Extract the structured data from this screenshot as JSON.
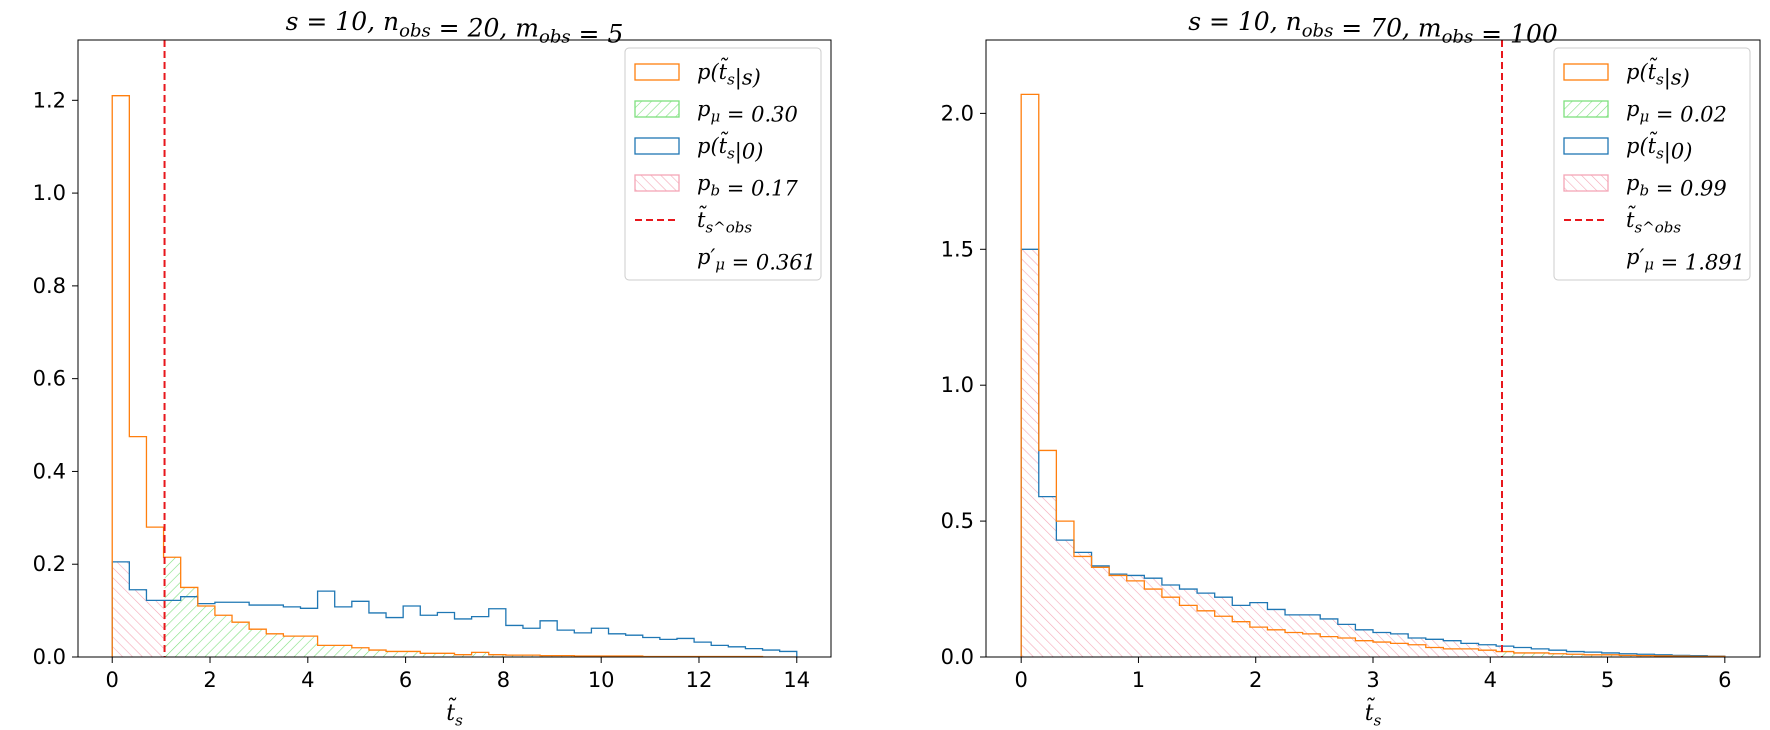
{
  "chart_data": [
    {
      "type": "histogram",
      "title": "s = 10, n_obs = 20, m_obs = 5",
      "xlabel": "t̃_s",
      "ylabel": "",
      "xlim": [
        -0.7,
        14.7
      ],
      "ylim": [
        0,
        1.33
      ],
      "xticks": [
        0,
        2,
        4,
        6,
        8,
        10,
        12,
        14
      ],
      "yticks": [
        0.0,
        0.2,
        0.4,
        0.6,
        0.8,
        1.0,
        1.2
      ],
      "xtick_labels": [
        "0",
        "2",
        "4",
        "6",
        "8",
        "10",
        "12",
        "14"
      ],
      "ytick_labels": [
        "0.0",
        "0.2",
        "0.4",
        "0.6",
        "0.8",
        "1.0",
        "1.2"
      ],
      "bins": {
        "start": 0,
        "width": 0.35
      },
      "series": [
        {
          "name": "p(t̃_s|s)",
          "color": "#ff7f0e",
          "values": [
            1.21,
            0.475,
            0.28,
            0.215,
            0.15,
            0.11,
            0.09,
            0.075,
            0.06,
            0.05,
            0.045,
            0.045,
            0.025,
            0.025,
            0.02,
            0.015,
            0.012,
            0.012,
            0.008,
            0.008,
            0.005,
            0.01,
            0.005,
            0.004,
            0.004,
            0.003,
            0.003,
            0.002,
            0.002,
            0.002,
            0.002,
            0.001,
            0.001,
            0.001,
            0.001,
            0.001,
            0.001,
            0.001,
            0.0,
            0.0
          ]
        },
        {
          "name": "p(t̃_s|0)",
          "color": "#1f77b4",
          "values": [
            0.205,
            0.145,
            0.122,
            0.122,
            0.13,
            0.115,
            0.118,
            0.118,
            0.112,
            0.112,
            0.108,
            0.105,
            0.142,
            0.108,
            0.12,
            0.095,
            0.085,
            0.11,
            0.09,
            0.096,
            0.082,
            0.087,
            0.104,
            0.068,
            0.062,
            0.078,
            0.058,
            0.052,
            0.062,
            0.05,
            0.047,
            0.042,
            0.038,
            0.04,
            0.032,
            0.025,
            0.022,
            0.018,
            0.015,
            0.012
          ]
        }
      ],
      "observed_t": 1.07,
      "legend": {
        "position": "top-right",
        "entries": [
          "p(t̃_s|s)",
          "p_μ = 0.30",
          "p(t̃_s|0)",
          "p_b = 0.17",
          "t̃_s^obs",
          "p′_μ = 0.361"
        ]
      }
    },
    {
      "type": "histogram",
      "title": "s = 10, n_obs = 70, m_obs = 100",
      "xlabel": "t̃_s",
      "ylabel": "",
      "xlim": [
        -0.3,
        6.3
      ],
      "ylim": [
        0,
        2.27
      ],
      "xticks": [
        0,
        1,
        2,
        3,
        4,
        5,
        6
      ],
      "yticks": [
        0.0,
        0.5,
        1.0,
        1.5,
        2.0
      ],
      "xtick_labels": [
        "0",
        "1",
        "2",
        "3",
        "4",
        "5",
        "6"
      ],
      "ytick_labels": [
        "0.0",
        "0.5",
        "1.0",
        "1.5",
        "2.0"
      ],
      "bins": {
        "start": 0,
        "width": 0.15
      },
      "series": [
        {
          "name": "p(t̃_s|s)",
          "color": "#ff7f0e",
          "values": [
            2.07,
            0.76,
            0.5,
            0.37,
            0.33,
            0.3,
            0.28,
            0.25,
            0.22,
            0.19,
            0.17,
            0.15,
            0.13,
            0.11,
            0.1,
            0.09,
            0.085,
            0.075,
            0.07,
            0.06,
            0.055,
            0.05,
            0.045,
            0.035,
            0.03,
            0.03,
            0.025,
            0.02,
            0.015,
            0.015,
            0.012,
            0.01,
            0.008,
            0.008,
            0.006,
            0.005,
            0.004,
            0.003,
            0.002,
            0.002
          ]
        },
        {
          "name": "p(t̃_s|0)",
          "color": "#1f77b4",
          "values": [
            1.5,
            0.59,
            0.43,
            0.385,
            0.335,
            0.305,
            0.3,
            0.29,
            0.265,
            0.25,
            0.235,
            0.22,
            0.19,
            0.2,
            0.175,
            0.155,
            0.155,
            0.14,
            0.12,
            0.1,
            0.09,
            0.085,
            0.07,
            0.065,
            0.06,
            0.05,
            0.045,
            0.04,
            0.035,
            0.03,
            0.025,
            0.02,
            0.018,
            0.015,
            0.012,
            0.01,
            0.008,
            0.006,
            0.005,
            0.003
          ]
        }
      ],
      "observed_t": 4.1,
      "legend": {
        "position": "top-right",
        "entries": [
          "p(t̃_s|s)",
          "p_μ = 0.02",
          "p(t̃_s|0)",
          "p_b = 0.99",
          "t̃_s^obs",
          "p′_μ = 1.891"
        ]
      }
    }
  ]
}
